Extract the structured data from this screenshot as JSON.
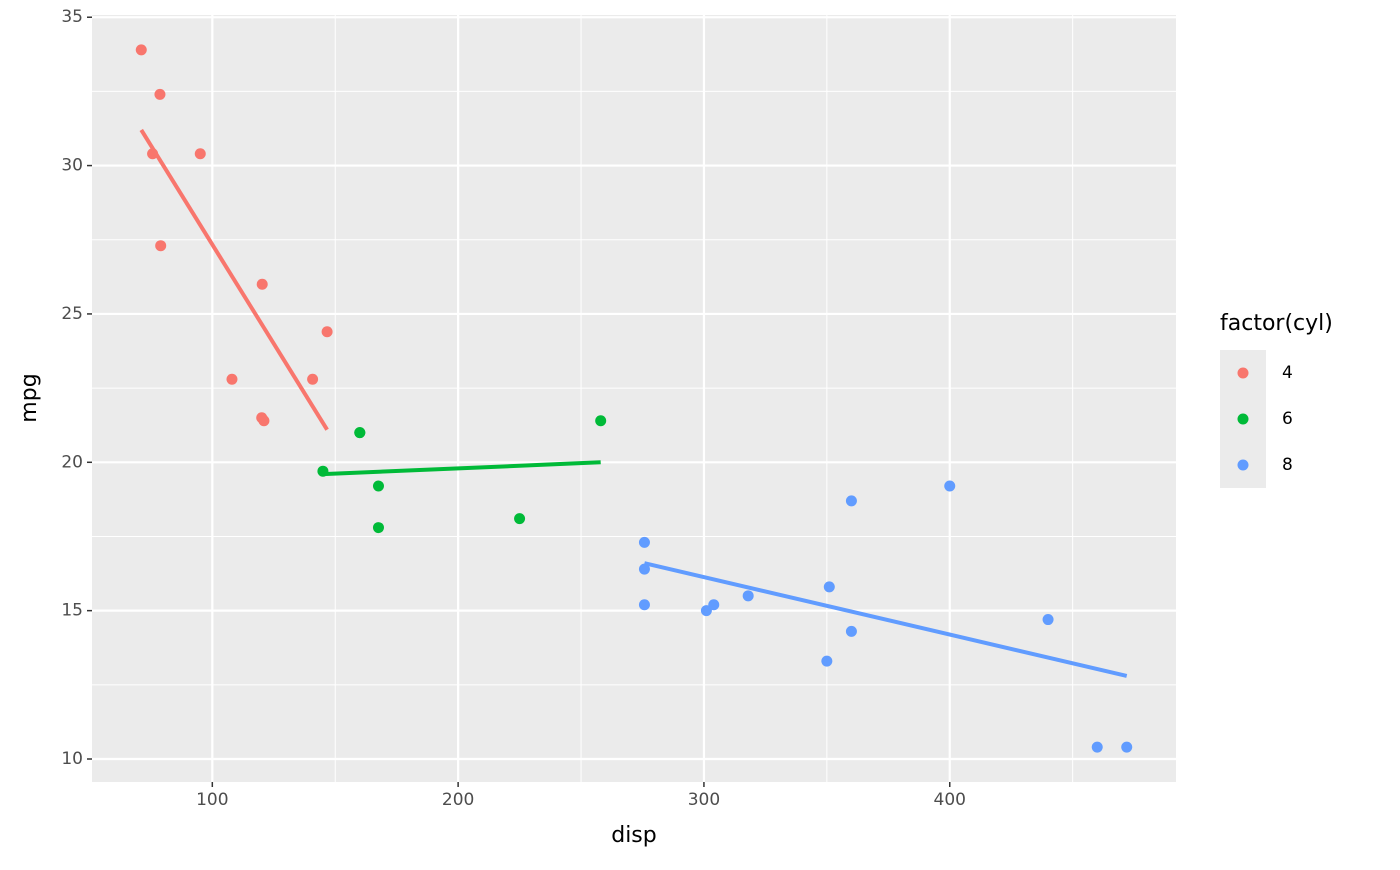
{
  "chart_data": {
    "type": "scatter",
    "x_label": "disp",
    "y_label": "mpg",
    "legend_title": "factor(cyl)",
    "legend_position": "right",
    "xlim": [
      51.055,
      492.045
    ],
    "xticks": [
      100,
      200,
      300,
      400
    ],
    "xminor": [
      150,
      250,
      350,
      450
    ],
    "ylim": [
      9.225,
      35.075
    ],
    "yticks": [
      10,
      15,
      20,
      25,
      30,
      35
    ],
    "yminor": [
      12.5,
      17.5,
      22.5,
      27.5,
      32.5
    ],
    "grid": true,
    "series": [
      {
        "name": "4",
        "color": "#F8766D",
        "x": [
          108,
          146.7,
          140.8,
          78.7,
          75.7,
          71.1,
          120.1,
          79,
          120.3,
          95.1,
          121
        ],
        "values": [
          22.8,
          24.4,
          22.8,
          32.4,
          30.4,
          33.9,
          21.5,
          27.3,
          26,
          30.4,
          21.4
        ],
        "fit": {
          "x": [
            71.1,
            146.7
          ],
          "values": [
            31.2,
            21.1
          ]
        }
      },
      {
        "name": "6",
        "color": "#00BA38",
        "x": [
          160,
          160,
          258,
          225,
          167.6,
          167.6,
          145
        ],
        "values": [
          21,
          21,
          21.4,
          18.1,
          19.2,
          17.8,
          19.7
        ],
        "fit": {
          "x": [
            145,
            258
          ],
          "values": [
            19.6,
            20.0
          ]
        }
      },
      {
        "name": "8",
        "color": "#619CFF",
        "x": [
          360,
          360,
          275.8,
          275.8,
          275.8,
          472,
          460,
          440,
          318,
          304,
          350,
          400,
          351,
          301
        ],
        "values": [
          18.7,
          14.3,
          16.4,
          17.3,
          15.2,
          10.4,
          10.4,
          14.7,
          15.5,
          15.2,
          13.3,
          19.2,
          15.8,
          15
        ],
        "fit": {
          "x": [
            275.8,
            472
          ],
          "values": [
            16.6,
            12.8
          ]
        }
      }
    ]
  }
}
